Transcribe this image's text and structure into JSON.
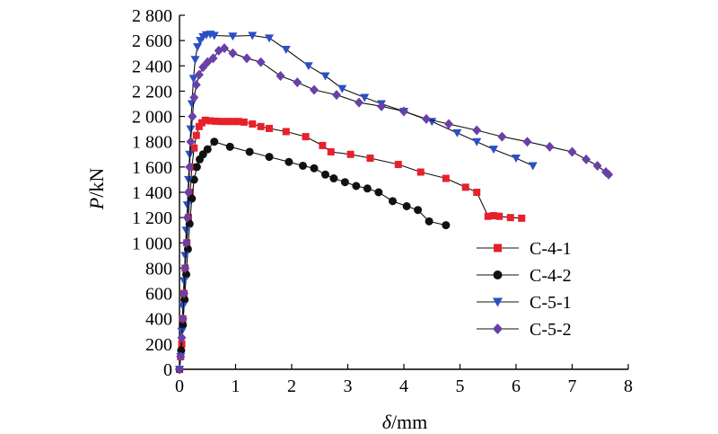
{
  "chart_data": {
    "type": "line",
    "title": "",
    "xlabel_italic": "δ",
    "xlabel_unit": "/mm",
    "ylabel_italic": "P",
    "ylabel_unit": "/kN",
    "xlim": [
      0,
      8
    ],
    "ylim": [
      0,
      2800
    ],
    "x_ticks": [
      0,
      1,
      2,
      3,
      4,
      5,
      6,
      7,
      8
    ],
    "x_tick_labels": [
      "0",
      "1",
      "2",
      "3",
      "4",
      "5",
      "6",
      "7",
      "8"
    ],
    "y_ticks": [
      0,
      200,
      400,
      600,
      800,
      1000,
      1200,
      1400,
      1600,
      1800,
      2000,
      2200,
      2400,
      2600,
      2800
    ],
    "y_tick_labels": [
      "0",
      "200",
      "400",
      "600",
      "800",
      "1 000",
      "1 200",
      "1 400",
      "1 600",
      "1 800",
      "2 000",
      "2 200",
      "2 400",
      "2 600",
      "2 800"
    ],
    "grid": false,
    "legend_position": "right-middle",
    "series": [
      {
        "name": "C-4-1",
        "color": "#e8202a",
        "marker": "square",
        "points": [
          [
            0,
            0
          ],
          [
            0.02,
            100
          ],
          [
            0.04,
            200
          ],
          [
            0.06,
            400
          ],
          [
            0.08,
            600
          ],
          [
            0.1,
            800
          ],
          [
            0.13,
            1000
          ],
          [
            0.16,
            1200
          ],
          [
            0.19,
            1400
          ],
          [
            0.22,
            1600
          ],
          [
            0.26,
            1750
          ],
          [
            0.3,
            1850
          ],
          [
            0.35,
            1920
          ],
          [
            0.4,
            1950
          ],
          [
            0.46,
            1970
          ],
          [
            0.55,
            1965
          ],
          [
            0.65,
            1962
          ],
          [
            0.75,
            1960
          ],
          [
            0.85,
            1960
          ],
          [
            0.95,
            1960
          ],
          [
            1.05,
            1960
          ],
          [
            1.15,
            1955
          ],
          [
            1.3,
            1940
          ],
          [
            1.45,
            1920
          ],
          [
            1.6,
            1905
          ],
          [
            1.9,
            1880
          ],
          [
            2.25,
            1840
          ],
          [
            2.55,
            1770
          ],
          [
            2.7,
            1720
          ],
          [
            3.05,
            1700
          ],
          [
            3.4,
            1670
          ],
          [
            3.9,
            1620
          ],
          [
            4.3,
            1560
          ],
          [
            4.75,
            1510
          ],
          [
            5.1,
            1440
          ],
          [
            5.3,
            1400
          ],
          [
            5.5,
            1210
          ],
          [
            5.6,
            1215
          ],
          [
            5.7,
            1210
          ],
          [
            5.9,
            1200
          ],
          [
            6.1,
            1195
          ]
        ]
      },
      {
        "name": "C-4-2",
        "color": "#111111",
        "marker": "circle",
        "points": [
          [
            0,
            0
          ],
          [
            0.03,
            150
          ],
          [
            0.06,
            350
          ],
          [
            0.09,
            550
          ],
          [
            0.12,
            750
          ],
          [
            0.15,
            950
          ],
          [
            0.18,
            1150
          ],
          [
            0.22,
            1350
          ],
          [
            0.26,
            1500
          ],
          [
            0.31,
            1600
          ],
          [
            0.36,
            1660
          ],
          [
            0.42,
            1700
          ],
          [
            0.5,
            1740
          ],
          [
            0.62,
            1800
          ],
          [
            0.9,
            1760
          ],
          [
            1.25,
            1720
          ],
          [
            1.6,
            1680
          ],
          [
            1.95,
            1640
          ],
          [
            2.2,
            1610
          ],
          [
            2.4,
            1590
          ],
          [
            2.6,
            1540
          ],
          [
            2.75,
            1510
          ],
          [
            2.95,
            1480
          ],
          [
            3.15,
            1450
          ],
          [
            3.35,
            1430
          ],
          [
            3.55,
            1400
          ],
          [
            3.8,
            1330
          ],
          [
            4.05,
            1290
          ],
          [
            4.25,
            1260
          ],
          [
            4.45,
            1170
          ],
          [
            4.75,
            1140
          ]
        ]
      },
      {
        "name": "C-5-1",
        "color": "#2b4fc4",
        "marker": "triangle-down",
        "points": [
          [
            0,
            0
          ],
          [
            0.02,
            100
          ],
          [
            0.04,
            300
          ],
          [
            0.06,
            500
          ],
          [
            0.08,
            700
          ],
          [
            0.1,
            900
          ],
          [
            0.12,
            1100
          ],
          [
            0.14,
            1300
          ],
          [
            0.16,
            1500
          ],
          [
            0.18,
            1700
          ],
          [
            0.2,
            1900
          ],
          [
            0.22,
            2100
          ],
          [
            0.25,
            2300
          ],
          [
            0.28,
            2450
          ],
          [
            0.32,
            2550
          ],
          [
            0.37,
            2600
          ],
          [
            0.42,
            2630
          ],
          [
            0.48,
            2645
          ],
          [
            0.55,
            2650
          ],
          [
            0.62,
            2640
          ],
          [
            0.95,
            2635
          ],
          [
            1.3,
            2640
          ],
          [
            1.6,
            2620
          ],
          [
            1.9,
            2530
          ],
          [
            2.3,
            2400
          ],
          [
            2.6,
            2320
          ],
          [
            2.9,
            2220
          ],
          [
            3.3,
            2150
          ],
          [
            3.6,
            2100
          ],
          [
            4.0,
            2040
          ],
          [
            4.5,
            1960
          ],
          [
            4.95,
            1870
          ],
          [
            5.3,
            1800
          ],
          [
            5.6,
            1740
          ],
          [
            6.0,
            1670
          ],
          [
            6.3,
            1610
          ]
        ]
      },
      {
        "name": "C-5-2",
        "color": "#6a3fa8",
        "marker": "diamond",
        "points": [
          [
            0,
            0
          ],
          [
            0.02,
            100
          ],
          [
            0.04,
            250
          ],
          [
            0.06,
            400
          ],
          [
            0.08,
            600
          ],
          [
            0.1,
            800
          ],
          [
            0.12,
            1000
          ],
          [
            0.14,
            1200
          ],
          [
            0.16,
            1400
          ],
          [
            0.18,
            1600
          ],
          [
            0.2,
            1800
          ],
          [
            0.23,
            2000
          ],
          [
            0.26,
            2150
          ],
          [
            0.3,
            2250
          ],
          [
            0.35,
            2330
          ],
          [
            0.42,
            2390
          ],
          [
            0.5,
            2430
          ],
          [
            0.6,
            2460
          ],
          [
            0.7,
            2520
          ],
          [
            0.8,
            2540
          ],
          [
            0.95,
            2500
          ],
          [
            1.2,
            2460
          ],
          [
            1.45,
            2430
          ],
          [
            1.8,
            2320
          ],
          [
            2.1,
            2270
          ],
          [
            2.4,
            2210
          ],
          [
            2.8,
            2170
          ],
          [
            3.2,
            2110
          ],
          [
            3.6,
            2080
          ],
          [
            4.0,
            2040
          ],
          [
            4.4,
            1980
          ],
          [
            4.8,
            1940
          ],
          [
            5.3,
            1890
          ],
          [
            5.75,
            1840
          ],
          [
            6.2,
            1800
          ],
          [
            6.6,
            1760
          ],
          [
            7.0,
            1720
          ],
          [
            7.25,
            1660
          ],
          [
            7.45,
            1610
          ],
          [
            7.6,
            1560
          ],
          [
            7.65,
            1540
          ]
        ]
      }
    ]
  }
}
